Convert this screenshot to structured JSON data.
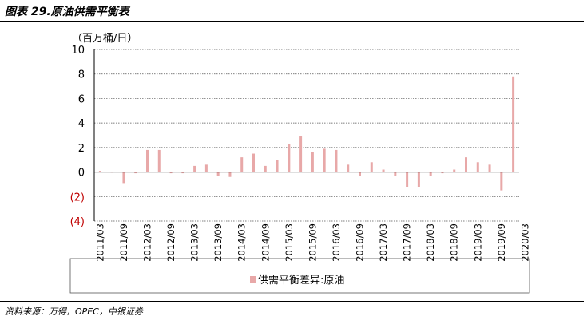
{
  "figure_title": "图表 29.原油供需平衡表",
  "source": "资料来源：万得，OPEC，中银证券",
  "colors": {
    "bar": "#e8a8a8",
    "negative_tick": "#c00000",
    "grid": "#555555"
  },
  "chart_data": {
    "type": "bar",
    "y_unit": "（百万桶/日）",
    "ylim": [
      -4,
      10
    ],
    "yticks": [
      10,
      8,
      6,
      4,
      2,
      0,
      -2,
      -4
    ],
    "ytick_labels": [
      "10",
      "8",
      "6",
      "4",
      "2",
      "0",
      "(2)",
      "(4)"
    ],
    "xtick_labels": [
      "2011/03",
      "2011/09",
      "2012/03",
      "2012/09",
      "2013/03",
      "2013/09",
      "2014/03",
      "2014/09",
      "2015/03",
      "2015/09",
      "2016/03",
      "2016/09",
      "2017/03",
      "2017/09",
      "2018/03",
      "2018/09",
      "2019/03",
      "2019/09",
      "2020/03"
    ],
    "grid": true,
    "legend_position": "bottom",
    "series": [
      {
        "name": "供需平衡差异:原油",
        "values": [
          0.1,
          0.0,
          -0.9,
          -0.1,
          1.8,
          1.8,
          -0.1,
          -0.1,
          0.5,
          0.6,
          -0.3,
          -0.4,
          1.2,
          1.5,
          0.5,
          1.0,
          2.3,
          2.9,
          1.6,
          1.9,
          1.8,
          0.6,
          -0.3,
          0.8,
          0.2,
          -0.3,
          -1.2,
          -1.2,
          -0.3,
          -0.1,
          0.2,
          1.2,
          0.8,
          0.6,
          -1.5,
          7.8
        ]
      }
    ]
  }
}
